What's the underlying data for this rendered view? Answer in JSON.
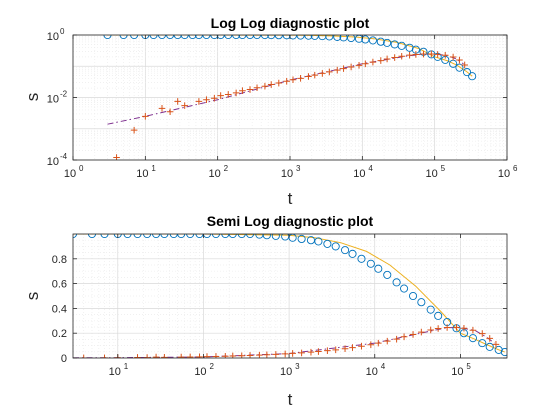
{
  "figure": {
    "background": "#ffffff"
  },
  "chart_data": [
    {
      "type": "scatter",
      "title": "Log Log diagnostic plot",
      "xlabel": "t",
      "ylabel": "s",
      "xscale": "log",
      "yscale": "log",
      "xlim": [
        1,
        1000000
      ],
      "ylim": [
        0.0001,
        1
      ],
      "xticks": [
        1,
        10,
        100,
        1000,
        10000,
        100000,
        1000000
      ],
      "xtick_labels": [
        {
          "base": "10",
          "exp": "0"
        },
        {
          "base": "10",
          "exp": "1"
        },
        {
          "base": "10",
          "exp": "2"
        },
        {
          "base": "10",
          "exp": "3"
        },
        {
          "base": "10",
          "exp": "4"
        },
        {
          "base": "10",
          "exp": "5"
        },
        {
          "base": "10",
          "exp": "6"
        }
      ],
      "yticks": [
        0.0001,
        0.01,
        1
      ],
      "ytick_labels": [
        {
          "base": "10",
          "exp": "-4"
        },
        {
          "base": "10",
          "exp": "-2"
        },
        {
          "base": "10",
          "exp": "0"
        }
      ],
      "grid": true,
      "minor_grid": true,
      "series": [
        {
          "marker": "circle",
          "color": "#0072bd",
          "x": [
            3,
            5,
            7,
            10,
            13,
            17,
            22,
            28,
            35,
            45,
            55,
            70,
            90,
            110,
            140,
            180,
            220,
            280,
            350,
            450,
            550,
            700,
            900,
            1100,
            1400,
            1800,
            2200,
            2800,
            3500,
            4500,
            5500,
            7000,
            9000,
            11000,
            14000,
            18000,
            22000,
            28000,
            35000,
            45000,
            55000,
            70000,
            90000,
            110000,
            140000,
            180000,
            220000,
            280000,
            330000
          ],
          "y": [
            1,
            1,
            1,
            1,
            1,
            1,
            1,
            1,
            1,
            1,
            1,
            1,
            1,
            1,
            1,
            1,
            1,
            1,
            1,
            0.995,
            0.99,
            0.985,
            0.98,
            0.97,
            0.96,
            0.95,
            0.94,
            0.92,
            0.9,
            0.87,
            0.84,
            0.8,
            0.76,
            0.72,
            0.67,
            0.61,
            0.56,
            0.5,
            0.45,
            0.39,
            0.34,
            0.29,
            0.24,
            0.2,
            0.16,
            0.12,
            0.09,
            0.065,
            0.048
          ]
        },
        {
          "marker": "plus",
          "color": "#d95319",
          "x": [
            4,
            7,
            10,
            17,
            22,
            28,
            35,
            55,
            70,
            90,
            110,
            140,
            180,
            220,
            280,
            350,
            450,
            550,
            700,
            900,
            1100,
            1400,
            1800,
            2200,
            2800,
            3500,
            4500,
            5500,
            7000,
            9000,
            11000,
            14000,
            18000,
            22000,
            28000,
            35000,
            45000,
            55000,
            70000,
            90000,
            110000,
            140000,
            180000,
            220000,
            260000
          ],
          "y": [
            0.00012,
            0.0009,
            0.0025,
            0.0045,
            0.0035,
            0.0075,
            0.0055,
            0.0075,
            0.0085,
            0.0095,
            0.0115,
            0.0125,
            0.014,
            0.0165,
            0.018,
            0.0205,
            0.023,
            0.026,
            0.029,
            0.033,
            0.037,
            0.041,
            0.047,
            0.052,
            0.059,
            0.066,
            0.075,
            0.084,
            0.095,
            0.107,
            0.12,
            0.136,
            0.152,
            0.171,
            0.19,
            0.209,
            0.226,
            0.238,
            0.246,
            0.247,
            0.24,
            0.224,
            0.197,
            0.158,
            0.11
          ]
        },
        {
          "line": "solid",
          "color": "#edb120",
          "x": [
            3,
            10,
            100,
            1000,
            2000,
            4000,
            8000,
            15000,
            30000,
            60000,
            100000,
            150000,
            200000,
            280000,
            330000
          ],
          "y": [
            1,
            1,
            1,
            0.99,
            0.97,
            0.93,
            0.86,
            0.75,
            0.58,
            0.37,
            0.2,
            0.15,
            0.11,
            0.066,
            0.048
          ]
        },
        {
          "line": "dashdot",
          "color": "#7e2f8e",
          "x": [
            3,
            10,
            100,
            1000,
            10000,
            40000,
            70000,
            100000,
            150000,
            200000,
            250000
          ],
          "y": [
            0.0014,
            0.0025,
            0.0085,
            0.036,
            0.12,
            0.21,
            0.245,
            0.245,
            0.22,
            0.17,
            0.12
          ]
        }
      ]
    },
    {
      "type": "scatter",
      "title": "Semi Log diagnostic plot",
      "xlabel": "t",
      "ylabel": "s",
      "xscale": "log",
      "yscale": "linear",
      "xlim": [
        3,
        350000
      ],
      "ylim": [
        0,
        1
      ],
      "xticks": [
        10,
        100,
        1000,
        10000,
        100000
      ],
      "xtick_labels": [
        {
          "base": "10",
          "exp": "1"
        },
        {
          "base": "10",
          "exp": "2"
        },
        {
          "base": "10",
          "exp": "3"
        },
        {
          "base": "10",
          "exp": "4"
        },
        {
          "base": "10",
          "exp": "5"
        }
      ],
      "yticks": [
        0,
        0.2,
        0.4,
        0.6,
        0.8
      ],
      "ytick_labels": [
        "0",
        "0.2",
        "0.4",
        "0.6",
        "0.8"
      ],
      "grid": true,
      "minor_grid": true,
      "series": [
        {
          "marker": "circle",
          "color": "#0072bd",
          "x": [
            3,
            5,
            7,
            10,
            13,
            17,
            22,
            28,
            35,
            45,
            55,
            70,
            90,
            110,
            140,
            180,
            220,
            280,
            350,
            450,
            550,
            700,
            900,
            1100,
            1400,
            1800,
            2200,
            2800,
            3500,
            4500,
            5500,
            7000,
            9000,
            11000,
            14000,
            18000,
            22000,
            28000,
            35000,
            45000,
            55000,
            70000,
            90000,
            110000,
            140000,
            180000,
            220000,
            280000,
            330000
          ],
          "y": [
            1,
            1,
            1,
            1,
            1,
            1,
            1,
            1,
            1,
            1,
            1,
            1,
            1,
            1,
            1,
            1,
            1,
            1,
            1,
            0.995,
            0.99,
            0.985,
            0.98,
            0.97,
            0.96,
            0.95,
            0.94,
            0.92,
            0.9,
            0.87,
            0.84,
            0.8,
            0.76,
            0.72,
            0.67,
            0.61,
            0.56,
            0.5,
            0.45,
            0.39,
            0.34,
            0.29,
            0.24,
            0.2,
            0.16,
            0.12,
            0.09,
            0.065,
            0.048
          ]
        },
        {
          "marker": "plus",
          "color": "#d95319",
          "x": [
            4,
            7,
            10,
            17,
            22,
            28,
            35,
            55,
            70,
            90,
            110,
            140,
            180,
            220,
            280,
            350,
            450,
            550,
            700,
            900,
            1100,
            1400,
            1800,
            2200,
            2800,
            3500,
            4500,
            5500,
            7000,
            9000,
            11000,
            14000,
            18000,
            22000,
            28000,
            35000,
            45000,
            55000,
            70000,
            90000,
            110000,
            140000,
            180000,
            220000,
            260000
          ],
          "y": [
            0.00012,
            0.0009,
            0.0025,
            0.0045,
            0.0035,
            0.0075,
            0.0055,
            0.0075,
            0.0085,
            0.0095,
            0.0115,
            0.0125,
            0.014,
            0.0165,
            0.018,
            0.0205,
            0.023,
            0.026,
            0.029,
            0.033,
            0.037,
            0.041,
            0.047,
            0.052,
            0.059,
            0.066,
            0.075,
            0.084,
            0.095,
            0.107,
            0.12,
            0.136,
            0.152,
            0.171,
            0.19,
            0.209,
            0.226,
            0.238,
            0.246,
            0.247,
            0.24,
            0.224,
            0.197,
            0.158,
            0.11
          ]
        },
        {
          "line": "solid",
          "color": "#edb120",
          "x": [
            3,
            10,
            100,
            1000,
            2000,
            4000,
            8000,
            15000,
            30000,
            60000,
            100000,
            150000,
            200000,
            280000,
            330000
          ],
          "y": [
            1,
            1,
            1,
            0.99,
            0.97,
            0.93,
            0.86,
            0.75,
            0.58,
            0.37,
            0.2,
            0.15,
            0.11,
            0.066,
            0.048
          ]
        },
        {
          "line": "dashdot",
          "color": "#7e2f8e",
          "x": [
            3,
            10,
            100,
            1000,
            10000,
            40000,
            70000,
            100000,
            150000,
            200000,
            250000
          ],
          "y": [
            0.0014,
            0.0025,
            0.0085,
            0.036,
            0.12,
            0.21,
            0.245,
            0.245,
            0.22,
            0.17,
            0.12
          ]
        }
      ]
    }
  ]
}
